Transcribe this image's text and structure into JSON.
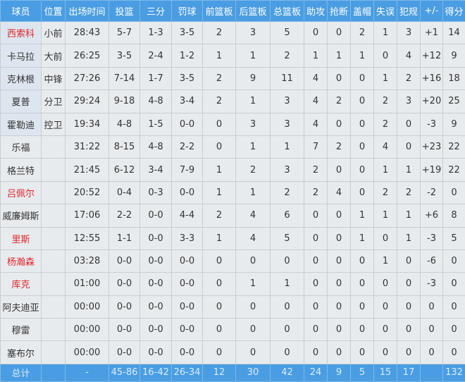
{
  "colors": {
    "header_bg": "#4a9de2",
    "row_bg": "#e8ebee",
    "highlight_name": "#e0262b"
  },
  "headers": [
    "球员",
    "位置",
    "出场时间",
    "投篮",
    "三分",
    "罚球",
    "前篮板",
    "后篮板",
    "总篮板",
    "助攻",
    "抢断",
    "盖帽",
    "失误",
    "犯规",
    "+/-",
    "得分"
  ],
  "players": [
    {
      "name": "西索科",
      "red": true,
      "starter": true,
      "stats": [
        "小前",
        "28:43",
        "5-7",
        "1-3",
        "3-5",
        "2",
        "3",
        "5",
        "0",
        "0",
        "2",
        "1",
        "3",
        "+1",
        "14"
      ]
    },
    {
      "name": "卡马拉",
      "red": false,
      "starter": true,
      "stats": [
        "大前",
        "26:25",
        "3-5",
        "2-4",
        "1-2",
        "1",
        "1",
        "2",
        "1",
        "1",
        "1",
        "0",
        "4",
        "+12",
        "9"
      ]
    },
    {
      "name": "克林根",
      "red": false,
      "starter": true,
      "stats": [
        "中锋",
        "27:26",
        "7-14",
        "1-7",
        "3-5",
        "2",
        "9",
        "11",
        "4",
        "0",
        "0",
        "1",
        "2",
        "+16",
        "18"
      ]
    },
    {
      "name": "夏普",
      "red": false,
      "starter": true,
      "stats": [
        "分卫",
        "29:24",
        "9-18",
        "4-8",
        "3-4",
        "2",
        "1",
        "3",
        "4",
        "2",
        "0",
        "2",
        "3",
        "+20",
        "25"
      ]
    },
    {
      "name": "霍勒迪",
      "red": false,
      "starter": true,
      "stats": [
        "控卫",
        "19:34",
        "4-8",
        "1-5",
        "0-0",
        "0",
        "3",
        "3",
        "4",
        "0",
        "0",
        "2",
        "0",
        "-3",
        "9"
      ]
    },
    {
      "name": "乐福",
      "red": false,
      "starter": false,
      "stats": [
        "",
        "31:22",
        "8-15",
        "4-8",
        "2-2",
        "0",
        "1",
        "1",
        "7",
        "2",
        "0",
        "4",
        "0",
        "+23",
        "22"
      ]
    },
    {
      "name": "格兰特",
      "red": false,
      "starter": false,
      "stats": [
        "",
        "21:45",
        "6-12",
        "3-4",
        "7-9",
        "1",
        "2",
        "3",
        "2",
        "0",
        "0",
        "1",
        "1",
        "+19",
        "22"
      ]
    },
    {
      "name": "吕佩尔",
      "red": true,
      "starter": false,
      "stats": [
        "",
        "20:52",
        "0-4",
        "0-3",
        "0-0",
        "1",
        "1",
        "2",
        "2",
        "4",
        "0",
        "2",
        "2",
        "-2",
        "0"
      ]
    },
    {
      "name": "威廉姆斯",
      "red": false,
      "starter": false,
      "stats": [
        "",
        "17:06",
        "2-2",
        "0-0",
        "4-4",
        "2",
        "4",
        "6",
        "0",
        "0",
        "1",
        "1",
        "1",
        "+6",
        "8"
      ]
    },
    {
      "name": "里斯",
      "red": true,
      "starter": false,
      "stats": [
        "",
        "12:55",
        "1-1",
        "0-0",
        "3-3",
        "1",
        "4",
        "5",
        "0",
        "0",
        "1",
        "0",
        "1",
        "-3",
        "5"
      ]
    },
    {
      "name": "杨瀚森",
      "red": true,
      "starter": false,
      "stats": [
        "",
        "03:28",
        "0-0",
        "0-0",
        "0-0",
        "0",
        "0",
        "0",
        "0",
        "0",
        "0",
        "1",
        "0",
        "-6",
        "0"
      ]
    },
    {
      "name": "库克",
      "red": true,
      "starter": false,
      "stats": [
        "",
        "01:00",
        "0-0",
        "0-0",
        "0-0",
        "0",
        "1",
        "1",
        "0",
        "0",
        "0",
        "0",
        "0",
        "-3",
        "0"
      ]
    },
    {
      "name": "阿夫迪亚",
      "red": false,
      "starter": false,
      "stats": [
        "",
        "00:00",
        "0-0",
        "0-0",
        "0-0",
        "0",
        "0",
        "0",
        "0",
        "0",
        "0",
        "0",
        "0",
        "0",
        "0"
      ]
    },
    {
      "name": "穆雷",
      "red": false,
      "starter": false,
      "stats": [
        "",
        "00:00",
        "0-0",
        "0-0",
        "0-0",
        "0",
        "0",
        "0",
        "0",
        "0",
        "0",
        "0",
        "0",
        "0",
        "0"
      ]
    },
    {
      "name": "塞布尔",
      "red": false,
      "starter": false,
      "stats": [
        "",
        "00:00",
        "0-0",
        "0-0",
        "0-0",
        "0",
        "0",
        "0",
        "0",
        "0",
        "0",
        "0",
        "0",
        "0",
        "0"
      ]
    }
  ],
  "totals": [
    "总计",
    "",
    "-",
    "45-86",
    "16-42",
    "26-34",
    "12",
    "30",
    "42",
    "24",
    "9",
    "5",
    "15",
    "17",
    "",
    "132"
  ]
}
